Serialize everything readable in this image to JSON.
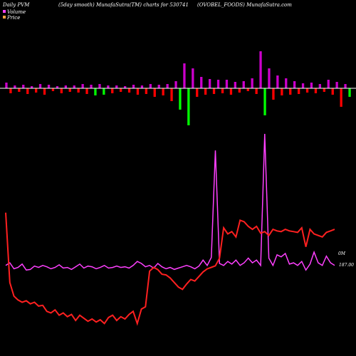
{
  "chart_data": {
    "type": "line",
    "title_left": "Daily PVM",
    "title_center": "(5day smooth) MunafaSutra(TM) charts for 530741",
    "title_right": "(OVOBEL_FOODS) MunafaSutra.com",
    "legend": [
      {
        "name": "Volume",
        "color": "#ff40ff"
      },
      {
        "name": "Price",
        "color": "#ff3030"
      }
    ],
    "volume_label": "0M",
    "price_label": "187.00",
    "colors": {
      "background": "#000000",
      "baseline": "#ffffff",
      "bar_up": "#cc00cc",
      "bar_down": "#ff0000",
      "bar_big_down": "#00ff00",
      "volume_line": "#ff40ff",
      "price_line": "#ff2020"
    },
    "pvm_bars": [
      {
        "v": 8,
        "c": "up"
      },
      {
        "v": -7,
        "c": "down"
      },
      {
        "v": 4,
        "c": "up"
      },
      {
        "v": -5,
        "c": "down"
      },
      {
        "v": 5,
        "c": "up"
      },
      {
        "v": -8,
        "c": "down"
      },
      {
        "v": 3,
        "c": "up"
      },
      {
        "v": -6,
        "c": "down"
      },
      {
        "v": 6,
        "c": "up"
      },
      {
        "v": -9,
        "c": "down"
      },
      {
        "v": 5,
        "c": "up"
      },
      {
        "v": -4,
        "c": "down"
      },
      {
        "v": 3,
        "c": "up"
      },
      {
        "v": -7,
        "c": "down"
      },
      {
        "v": 4,
        "c": "up"
      },
      {
        "v": -5,
        "c": "down"
      },
      {
        "v": 4,
        "c": "up"
      },
      {
        "v": -6,
        "c": "down"
      },
      {
        "v": 6,
        "c": "up"
      },
      {
        "v": -8,
        "c": "down"
      },
      {
        "v": 5,
        "c": "up"
      },
      {
        "v": -10,
        "c": "bigdown"
      },
      {
        "v": 6,
        "c": "up"
      },
      {
        "v": -9,
        "c": "bigdown"
      },
      {
        "v": 4,
        "c": "up"
      },
      {
        "v": -7,
        "c": "down"
      },
      {
        "v": 4,
        "c": "up"
      },
      {
        "v": -5,
        "c": "down"
      },
      {
        "v": 3,
        "c": "up"
      },
      {
        "v": -6,
        "c": "down"
      },
      {
        "v": 5,
        "c": "up"
      },
      {
        "v": -9,
        "c": "down"
      },
      {
        "v": 4,
        "c": "up"
      },
      {
        "v": -8,
        "c": "down"
      },
      {
        "v": 6,
        "c": "up"
      },
      {
        "v": -12,
        "c": "down"
      },
      {
        "v": 5,
        "c": "up"
      },
      {
        "v": -10,
        "c": "down"
      },
      {
        "v": 6,
        "c": "up"
      },
      {
        "v": -18,
        "c": "down"
      },
      {
        "v": 10,
        "c": "up"
      },
      {
        "v": -30,
        "c": "bigdown"
      },
      {
        "v": 35,
        "c": "up"
      },
      {
        "v": -52,
        "c": "bigdown"
      },
      {
        "v": 28,
        "c": "up"
      },
      {
        "v": -12,
        "c": "down"
      },
      {
        "v": 16,
        "c": "up"
      },
      {
        "v": -9,
        "c": "down"
      },
      {
        "v": 13,
        "c": "up"
      },
      {
        "v": -8,
        "c": "down"
      },
      {
        "v": 12,
        "c": "up"
      },
      {
        "v": -7,
        "c": "down"
      },
      {
        "v": 12,
        "c": "up"
      },
      {
        "v": -9,
        "c": "down"
      },
      {
        "v": 9,
        "c": "up"
      },
      {
        "v": -6,
        "c": "down"
      },
      {
        "v": 10,
        "c": "up"
      },
      {
        "v": -4,
        "c": "down"
      },
      {
        "v": 14,
        "c": "up"
      },
      {
        "v": -8,
        "c": "down"
      },
      {
        "v": 52,
        "c": "up"
      },
      {
        "v": -38,
        "c": "bigdown"
      },
      {
        "v": 28,
        "c": "up"
      },
      {
        "v": -16,
        "c": "down"
      },
      {
        "v": 18,
        "c": "up"
      },
      {
        "v": -10,
        "c": "down"
      },
      {
        "v": 14,
        "c": "up"
      },
      {
        "v": -9,
        "c": "down"
      },
      {
        "v": 10,
        "c": "up"
      },
      {
        "v": -8,
        "c": "down"
      },
      {
        "v": 7,
        "c": "up"
      },
      {
        "v": -6,
        "c": "down"
      },
      {
        "v": 8,
        "c": "up"
      },
      {
        "v": -7,
        "c": "down"
      },
      {
        "v": 6,
        "c": "up"
      },
      {
        "v": -5,
        "c": "down"
      },
      {
        "v": 12,
        "c": "up"
      },
      {
        "v": -9,
        "c": "down"
      },
      {
        "v": 9,
        "c": "up"
      },
      {
        "v": -26,
        "c": "down"
      },
      {
        "v": 6,
        "c": "up"
      },
      {
        "v": -12,
        "c": "bigdown"
      }
    ],
    "volume_series": [
      72,
      76,
      67,
      69,
      74,
      65,
      66,
      71,
      69,
      72,
      70,
      67,
      69,
      73,
      68,
      69,
      66,
      70,
      74,
      68,
      71,
      70,
      67,
      69,
      72,
      68,
      69,
      71,
      69,
      70,
      68,
      72,
      78,
      75,
      70,
      72,
      68,
      75,
      70,
      67,
      69,
      66,
      68,
      70,
      72,
      70,
      67,
      71,
      80,
      72,
      84,
      245,
      75,
      72,
      78,
      74,
      80,
      72,
      76,
      83,
      76,
      80,
      72,
      270,
      83,
      72,
      88,
      85,
      90,
      74,
      76,
      72,
      78,
      65,
      74,
      92,
      76,
      72,
      86,
      76,
      72
    ],
    "price_series": [
      170,
      78,
      60,
      55,
      52,
      54,
      50,
      52,
      47,
      48,
      40,
      38,
      42,
      35,
      38,
      33,
      36,
      28,
      35,
      31,
      27,
      30,
      26,
      29,
      24,
      32,
      35,
      28,
      33,
      30,
      36,
      40,
      24,
      43,
      46,
      93,
      98,
      95,
      89,
      88,
      84,
      78,
      72,
      69,
      76,
      82,
      80,
      86,
      92,
      96,
      98,
      100,
      110,
      150,
      142,
      145,
      138,
      160,
      158,
      152,
      148,
      152,
      143,
      145,
      140,
      148,
      146,
      145,
      148,
      146,
      145,
      144,
      150,
      125,
      148,
      142,
      140,
      138,
      144,
      146,
      148
    ]
  }
}
